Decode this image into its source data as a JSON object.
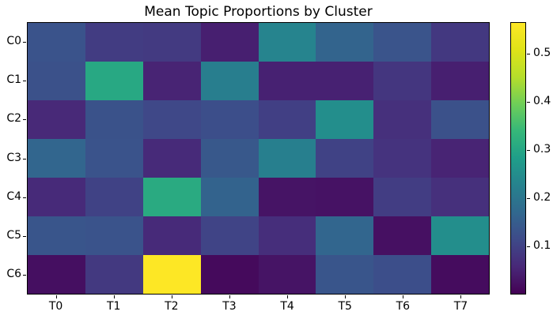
{
  "chart_data": {
    "type": "heatmap",
    "title": "Mean Topic Proportions by Cluster",
    "rows": [
      "C0",
      "C1",
      "C2",
      "C3",
      "C4",
      "C5",
      "C6"
    ],
    "columns": [
      "T0",
      "T1",
      "T2",
      "T3",
      "T4",
      "T5",
      "T6",
      "T7"
    ],
    "values": [
      [
        0.13,
        0.089,
        0.086,
        0.044,
        0.23,
        0.162,
        0.131,
        0.083
      ],
      [
        0.126,
        0.305,
        0.05,
        0.218,
        0.047,
        0.047,
        0.08,
        0.044
      ],
      [
        0.058,
        0.129,
        0.11,
        0.12,
        0.095,
        0.25,
        0.07,
        0.127
      ],
      [
        0.165,
        0.13,
        0.06,
        0.14,
        0.22,
        0.1,
        0.075,
        0.05
      ],
      [
        0.06,
        0.1,
        0.31,
        0.16,
        0.027,
        0.025,
        0.092,
        0.07
      ],
      [
        0.134,
        0.13,
        0.06,
        0.103,
        0.067,
        0.165,
        0.022,
        0.25
      ],
      [
        0.02,
        0.084,
        0.565,
        0.013,
        0.027,
        0.134,
        0.12,
        0.016
      ]
    ],
    "colormap": "viridis",
    "vmin": 0.0,
    "vmax": 0.565,
    "colorbar_ticks": [
      "0.1",
      "0.2",
      "0.3",
      "0.4",
      "0.5"
    ],
    "colorbar_tick_values": [
      0.1,
      0.2,
      0.3,
      0.4,
      0.5
    ],
    "legend_position": "right-colorbar",
    "grid": false,
    "color_extremes": {
      "min_color": "#440154",
      "max_color": "#fde725"
    }
  }
}
